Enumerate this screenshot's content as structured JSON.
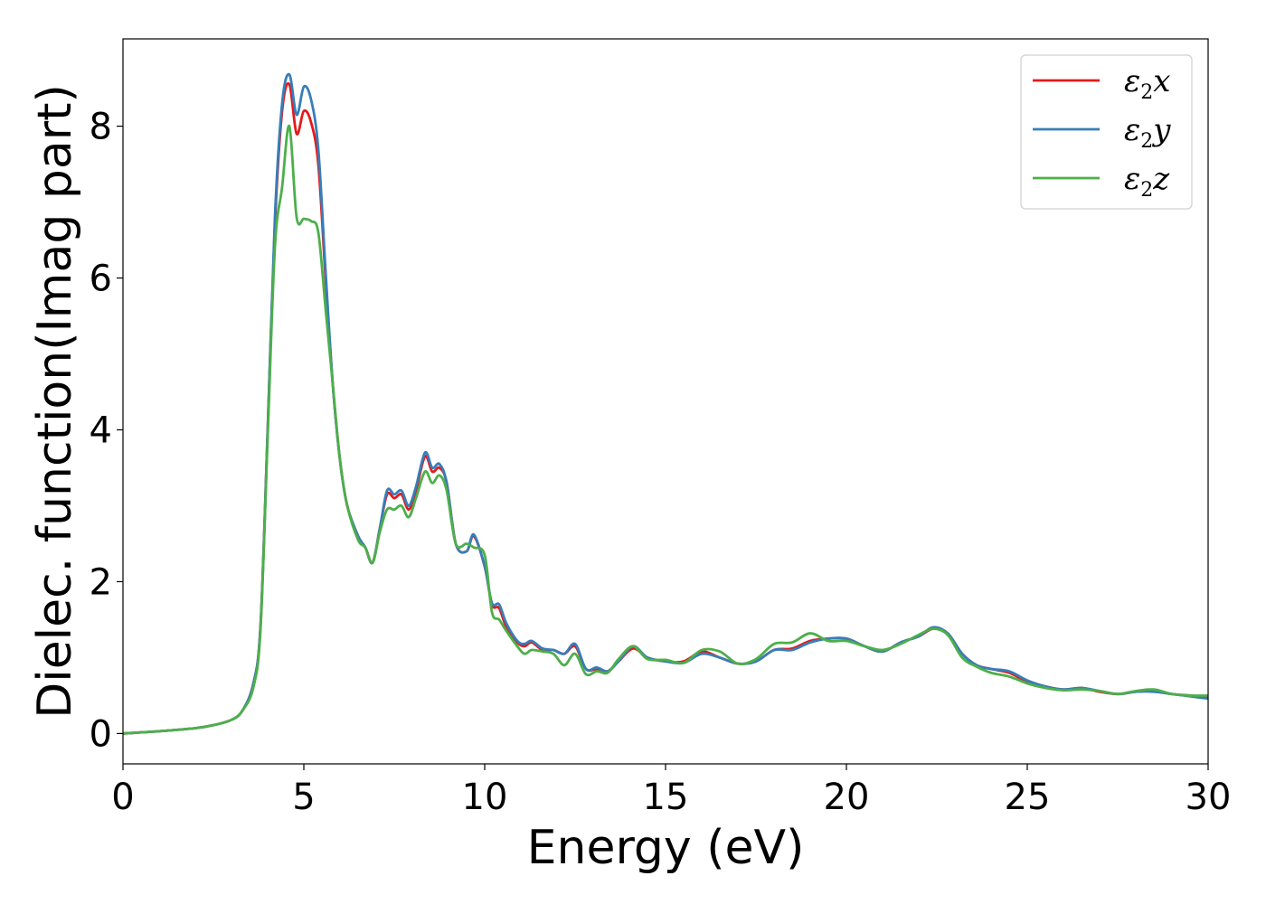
{
  "chart_data": {
    "type": "line",
    "title": "",
    "xlabel": "Energy (eV)",
    "ylabel": "Dielec. function(Imag part)",
    "xlim": [
      0,
      30
    ],
    "ylim": [
      -0.4,
      9.15
    ],
    "xticks": [
      0,
      5,
      10,
      15,
      20,
      25,
      30
    ],
    "xtick_labels": [
      "0",
      "5",
      "10",
      "15",
      "20",
      "25",
      "30"
    ],
    "yticks": [
      0,
      2,
      4,
      6,
      8
    ],
    "ytick_labels": [
      "0",
      "2",
      "4",
      "6",
      "8"
    ],
    "grid": false,
    "legend_position": "top-right",
    "series": [
      {
        "name": "ε₂x",
        "legend_symbol": "ε",
        "legend_sub": "2",
        "legend_var": "x",
        "color": "#e41a1c",
        "x": [
          0,
          1,
          2,
          2.5,
          3,
          3.3,
          3.6,
          3.8,
          4.0,
          4.2,
          4.4,
          4.6,
          4.8,
          5.0,
          5.2,
          5.4,
          5.6,
          5.8,
          6.0,
          6.2,
          6.5,
          6.7,
          6.9,
          7.1,
          7.3,
          7.5,
          7.7,
          7.9,
          8.1,
          8.35,
          8.55,
          8.75,
          8.95,
          9.2,
          9.5,
          9.7,
          10.0,
          10.2,
          10.4,
          10.6,
          10.9,
          11.1,
          11.3,
          11.6,
          11.9,
          12.2,
          12.5,
          12.8,
          13.1,
          13.4,
          13.7,
          14.1,
          14.5,
          15.0,
          15.5,
          16.0,
          16.5,
          17.0,
          17.5,
          18.0,
          18.5,
          19.0,
          19.5,
          20.0,
          20.5,
          21.0,
          21.5,
          22.0,
          22.4,
          22.8,
          23.2,
          23.6,
          24.0,
          24.5,
          25.0,
          25.5,
          26.0,
          26.5,
          27.0,
          27.5,
          28.0,
          28.5,
          29.0,
          29.5,
          30.0
        ],
        "y": [
          0.0,
          0.03,
          0.07,
          0.11,
          0.18,
          0.3,
          0.65,
          1.4,
          4.0,
          6.7,
          8.2,
          8.55,
          7.9,
          8.2,
          8.05,
          7.5,
          6.0,
          4.6,
          3.6,
          3.0,
          2.6,
          2.45,
          2.25,
          2.7,
          3.15,
          3.1,
          3.15,
          2.95,
          3.2,
          3.65,
          3.45,
          3.5,
          3.3,
          2.5,
          2.4,
          2.6,
          2.2,
          1.7,
          1.65,
          1.4,
          1.2,
          1.15,
          1.2,
          1.1,
          1.1,
          1.05,
          1.15,
          0.85,
          0.85,
          0.82,
          0.95,
          1.12,
          1.0,
          0.95,
          0.95,
          1.08,
          1.0,
          0.92,
          0.95,
          1.1,
          1.12,
          1.22,
          1.25,
          1.25,
          1.15,
          1.08,
          1.2,
          1.28,
          1.38,
          1.32,
          1.05,
          0.9,
          0.85,
          0.8,
          0.68,
          0.62,
          0.58,
          0.6,
          0.55,
          0.52,
          0.55,
          0.56,
          0.52,
          0.5,
          0.48
        ]
      },
      {
        "name": "ε₂y",
        "legend_symbol": "ε",
        "legend_sub": "2",
        "legend_var": "y",
        "color": "#377eb8",
        "x": [
          0,
          1,
          2,
          2.5,
          3,
          3.3,
          3.6,
          3.8,
          4.0,
          4.2,
          4.4,
          4.6,
          4.8,
          5.0,
          5.2,
          5.4,
          5.6,
          5.8,
          6.0,
          6.2,
          6.5,
          6.7,
          6.9,
          7.1,
          7.3,
          7.5,
          7.7,
          7.9,
          8.1,
          8.35,
          8.55,
          8.75,
          8.95,
          9.2,
          9.5,
          9.7,
          10.0,
          10.2,
          10.4,
          10.6,
          10.9,
          11.1,
          11.3,
          11.6,
          11.9,
          12.2,
          12.5,
          12.8,
          13.1,
          13.4,
          13.7,
          14.1,
          14.5,
          15.0,
          15.5,
          16.0,
          16.5,
          17.0,
          17.5,
          18.0,
          18.5,
          19.0,
          19.5,
          20.0,
          20.5,
          21.0,
          21.5,
          22.0,
          22.4,
          22.8,
          23.2,
          23.6,
          24.0,
          24.5,
          25.0,
          25.5,
          26.0,
          26.5,
          27.0,
          27.5,
          28.0,
          28.5,
          29.0,
          29.5,
          30.0
        ],
        "y": [
          0.0,
          0.03,
          0.07,
          0.11,
          0.18,
          0.3,
          0.65,
          1.4,
          4.0,
          6.8,
          8.3,
          8.68,
          8.15,
          8.52,
          8.35,
          7.7,
          6.1,
          4.6,
          3.6,
          3.0,
          2.6,
          2.45,
          2.25,
          2.7,
          3.2,
          3.15,
          3.2,
          3.0,
          3.25,
          3.7,
          3.5,
          3.55,
          3.3,
          2.5,
          2.4,
          2.62,
          2.2,
          1.72,
          1.7,
          1.45,
          1.22,
          1.18,
          1.22,
          1.12,
          1.1,
          1.05,
          1.18,
          0.85,
          0.87,
          0.82,
          0.95,
          1.15,
          1.0,
          0.95,
          0.93,
          1.05,
          1.0,
          0.92,
          0.95,
          1.1,
          1.1,
          1.2,
          1.25,
          1.25,
          1.15,
          1.08,
          1.2,
          1.28,
          1.4,
          1.32,
          1.05,
          0.9,
          0.85,
          0.82,
          0.7,
          0.62,
          0.58,
          0.6,
          0.56,
          0.52,
          0.55,
          0.55,
          0.52,
          0.49,
          0.46
        ]
      },
      {
        "name": "ε₂z",
        "legend_symbol": "ε",
        "legend_sub": "2",
        "legend_var": "z",
        "color": "#4daf4a",
        "x": [
          0,
          1,
          2,
          2.5,
          3,
          3.3,
          3.6,
          3.8,
          4.0,
          4.2,
          4.4,
          4.6,
          4.8,
          5.0,
          5.2,
          5.4,
          5.6,
          5.8,
          6.0,
          6.2,
          6.5,
          6.7,
          6.9,
          7.1,
          7.3,
          7.5,
          7.7,
          7.9,
          8.1,
          8.35,
          8.55,
          8.75,
          8.95,
          9.2,
          9.5,
          9.7,
          10.0,
          10.2,
          10.4,
          10.6,
          10.9,
          11.1,
          11.3,
          11.6,
          11.9,
          12.2,
          12.5,
          12.8,
          13.1,
          13.4,
          13.7,
          14.1,
          14.5,
          15.0,
          15.5,
          16.0,
          16.5,
          17.0,
          17.5,
          18.0,
          18.5,
          19.0,
          19.5,
          20.0,
          20.5,
          21.0,
          21.5,
          22.0,
          22.4,
          22.8,
          23.2,
          23.6,
          24.0,
          24.5,
          25.0,
          25.5,
          26.0,
          26.5,
          27.0,
          27.5,
          28.0,
          28.5,
          29.0,
          29.5,
          30.0
        ],
        "y": [
          0.0,
          0.03,
          0.07,
          0.11,
          0.18,
          0.3,
          0.6,
          1.35,
          3.9,
          6.4,
          7.2,
          8.0,
          6.8,
          6.78,
          6.75,
          6.6,
          5.6,
          4.6,
          3.6,
          3.0,
          2.55,
          2.45,
          2.25,
          2.65,
          2.95,
          2.95,
          3.0,
          2.85,
          3.1,
          3.45,
          3.3,
          3.4,
          3.2,
          2.5,
          2.5,
          2.45,
          2.35,
          1.6,
          1.5,
          1.35,
          1.15,
          1.05,
          1.1,
          1.08,
          1.05,
          0.9,
          1.05,
          0.78,
          0.82,
          0.8,
          0.98,
          1.15,
          0.98,
          0.97,
          0.93,
          1.1,
          1.08,
          0.92,
          0.98,
          1.18,
          1.2,
          1.32,
          1.22,
          1.22,
          1.15,
          1.1,
          1.18,
          1.3,
          1.38,
          1.3,
          1.0,
          0.88,
          0.8,
          0.75,
          0.66,
          0.6,
          0.57,
          0.58,
          0.56,
          0.52,
          0.56,
          0.58,
          0.52,
          0.5,
          0.5
        ]
      }
    ]
  }
}
